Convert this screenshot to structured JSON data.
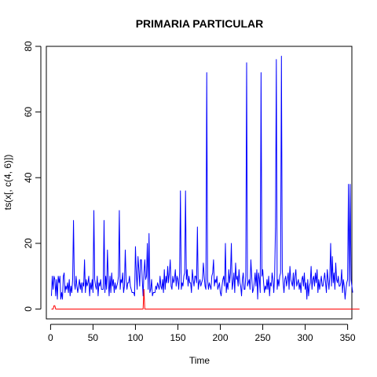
{
  "chart_data": {
    "type": "line",
    "title": "PRIMARIA PARTICULAR",
    "xlabel": "Time",
    "ylabel": "ts(x[, c(4, 6)])",
    "xlim": [
      -5,
      355
    ],
    "ylim": [
      -3,
      80
    ],
    "x_ticks": [
      0,
      50,
      100,
      150,
      200,
      250,
      300,
      350
    ],
    "y_ticks": [
      0,
      20,
      40,
      60,
      80
    ],
    "grid": false,
    "legend": "none",
    "series": [
      {
        "color": "#0000ff",
        "values": [
          4,
          10,
          6,
          10,
          9,
          4,
          9,
          3,
          10,
          8,
          10,
          3,
          5,
          3,
          10,
          11,
          5,
          7,
          6,
          8,
          5,
          9,
          4,
          7,
          5,
          9,
          27,
          8,
          6,
          10,
          7,
          5,
          7,
          9,
          6,
          8,
          5,
          8,
          7,
          15,
          5,
          9,
          7,
          8,
          10,
          4,
          8,
          6,
          9,
          5,
          30,
          9,
          7,
          6,
          10,
          4,
          8,
          7,
          9,
          6,
          6,
          6,
          27,
          5,
          10,
          6,
          18,
          9,
          4,
          10,
          5,
          11,
          7,
          9,
          5,
          8,
          6,
          7,
          8,
          10,
          30,
          6,
          9,
          8,
          11,
          5,
          7,
          18,
          9,
          6,
          8,
          8,
          10,
          7,
          6,
          5,
          5,
          5,
          4,
          19,
          11,
          6,
          16,
          12,
          7,
          15,
          15,
          9,
          4,
          11,
          15,
          9,
          10,
          20,
          6,
          23,
          5,
          6,
          9,
          4,
          5,
          5,
          5,
          7,
          6,
          8,
          7,
          6,
          10,
          7,
          6,
          9,
          5,
          12,
          6,
          10,
          8,
          13,
          8,
          11,
          15,
          7,
          6,
          10,
          8,
          9,
          12,
          7,
          10,
          9,
          6,
          11,
          36,
          6,
          8,
          7,
          10,
          11,
          36,
          9,
          12,
          7,
          10,
          8,
          8,
          5,
          12,
          9,
          7,
          10,
          10,
          8,
          25,
          6,
          8,
          9,
          7,
          8,
          9,
          14,
          10,
          7,
          6,
          72,
          9,
          6,
          8,
          7,
          6,
          10,
          11,
          15,
          7,
          9,
          8,
          10,
          6,
          7,
          8,
          5,
          4,
          7,
          9,
          10,
          7,
          20,
          5,
          8,
          6,
          12,
          8,
          11,
          20,
          6,
          8,
          11,
          5,
          14,
          9,
          10,
          7,
          12,
          8,
          7,
          4,
          9,
          11,
          6,
          6,
          10,
          75,
          7,
          8,
          9,
          6,
          15,
          10,
          5,
          6,
          8,
          11,
          7,
          12,
          3,
          11,
          9,
          5,
          72,
          10,
          12,
          8,
          5,
          7,
          6,
          9,
          6,
          10,
          4,
          8,
          7,
          11,
          9,
          5,
          10,
          25,
          76,
          6,
          9,
          7,
          10,
          11,
          77,
          12,
          8,
          5,
          9,
          10,
          7,
          9,
          11,
          6,
          13,
          9,
          8,
          7,
          11,
          6,
          10,
          12,
          7,
          8,
          9,
          6,
          8,
          5,
          9,
          10,
          7,
          11,
          6,
          8,
          3,
          9,
          4,
          7,
          8,
          13,
          6,
          9,
          10,
          7,
          11,
          8,
          12,
          5,
          9,
          6,
          8,
          10,
          7,
          7,
          9,
          11,
          8,
          5,
          12,
          9,
          6,
          10,
          20,
          7,
          16,
          8,
          11,
          6,
          14,
          9,
          8,
          10,
          7,
          7,
          8,
          12,
          5,
          9,
          7,
          3,
          6,
          8,
          9,
          38,
          7,
          38,
          9,
          7,
          5
        ]
      },
      {
        "color": "#ff0000",
        "values": [
          0,
          0,
          0,
          1,
          1,
          0,
          0,
          0,
          0,
          0,
          0,
          0,
          0,
          0,
          0,
          0,
          0,
          0,
          0,
          0,
          0,
          0,
          0,
          0,
          0,
          0,
          0,
          0,
          0,
          0,
          0,
          0,
          0,
          0,
          0,
          0,
          0,
          0,
          0,
          0,
          0,
          0,
          0,
          0,
          0,
          0,
          0,
          0,
          0,
          0,
          0,
          0,
          0,
          0,
          0,
          0,
          0,
          0,
          0,
          0,
          0,
          0,
          0,
          0,
          0,
          0,
          0,
          0,
          0,
          0,
          0,
          0,
          0,
          0,
          0,
          0,
          0,
          0,
          0,
          0,
          0,
          0,
          0,
          0,
          0,
          0,
          0,
          0,
          0,
          0,
          0,
          0,
          0,
          0,
          0,
          0,
          0,
          0,
          0,
          0,
          0,
          0,
          0,
          0,
          0,
          0,
          0,
          0,
          0,
          6,
          0,
          0,
          0,
          0,
          0,
          0,
          0,
          0,
          0,
          0,
          0,
          0,
          0,
          0,
          0,
          0,
          0,
          0,
          0,
          0,
          0,
          0,
          0,
          0,
          0,
          0,
          0,
          0,
          0,
          0,
          0,
          0,
          0,
          0,
          0,
          0,
          0,
          0,
          0,
          0,
          0,
          0,
          0,
          0,
          0,
          0,
          0,
          0,
          0,
          0,
          0,
          0,
          0,
          0,
          0,
          0,
          0,
          0,
          0,
          0,
          0,
          0,
          0,
          0,
          0,
          0,
          0,
          0,
          0,
          0,
          0,
          0,
          0,
          0,
          0,
          0,
          0,
          0,
          0,
          0,
          0,
          0,
          0,
          0,
          0,
          0,
          0,
          0,
          0,
          0,
          0,
          0,
          0,
          0,
          0,
          0,
          0,
          0,
          0,
          0,
          0,
          0,
          0,
          0,
          0,
          0,
          0,
          0,
          0,
          0,
          0,
          0,
          0,
          0,
          0,
          0,
          0,
          0,
          0,
          0,
          0,
          0,
          0,
          0,
          0,
          0,
          0,
          0,
          0,
          0,
          0,
          0,
          0,
          0,
          0,
          0,
          0,
          0,
          0,
          0,
          0,
          0,
          0,
          0,
          0,
          0,
          0,
          0,
          0,
          0,
          0,
          0,
          0,
          0,
          0,
          0,
          0,
          0,
          0,
          0,
          0,
          0,
          0,
          0,
          0,
          0,
          0,
          0,
          0,
          0,
          0,
          0,
          0,
          0,
          0,
          0,
          0,
          0,
          0,
          0,
          0,
          0,
          0,
          0,
          0,
          0,
          0,
          0,
          0,
          0,
          0,
          0,
          0,
          0,
          0,
          0,
          0,
          0,
          0,
          0,
          0,
          0,
          0,
          0,
          0,
          0,
          0,
          0,
          0,
          0,
          0,
          0,
          0,
          0,
          0,
          0,
          0,
          0,
          0,
          0,
          0,
          0,
          0,
          0,
          0,
          0,
          0,
          0,
          0,
          0,
          0,
          0,
          0,
          0,
          0,
          0,
          0,
          0,
          0,
          0,
          0,
          0,
          0,
          0,
          0,
          0,
          0,
          0,
          0,
          0,
          0,
          0,
          0,
          0
        ]
      }
    ]
  }
}
